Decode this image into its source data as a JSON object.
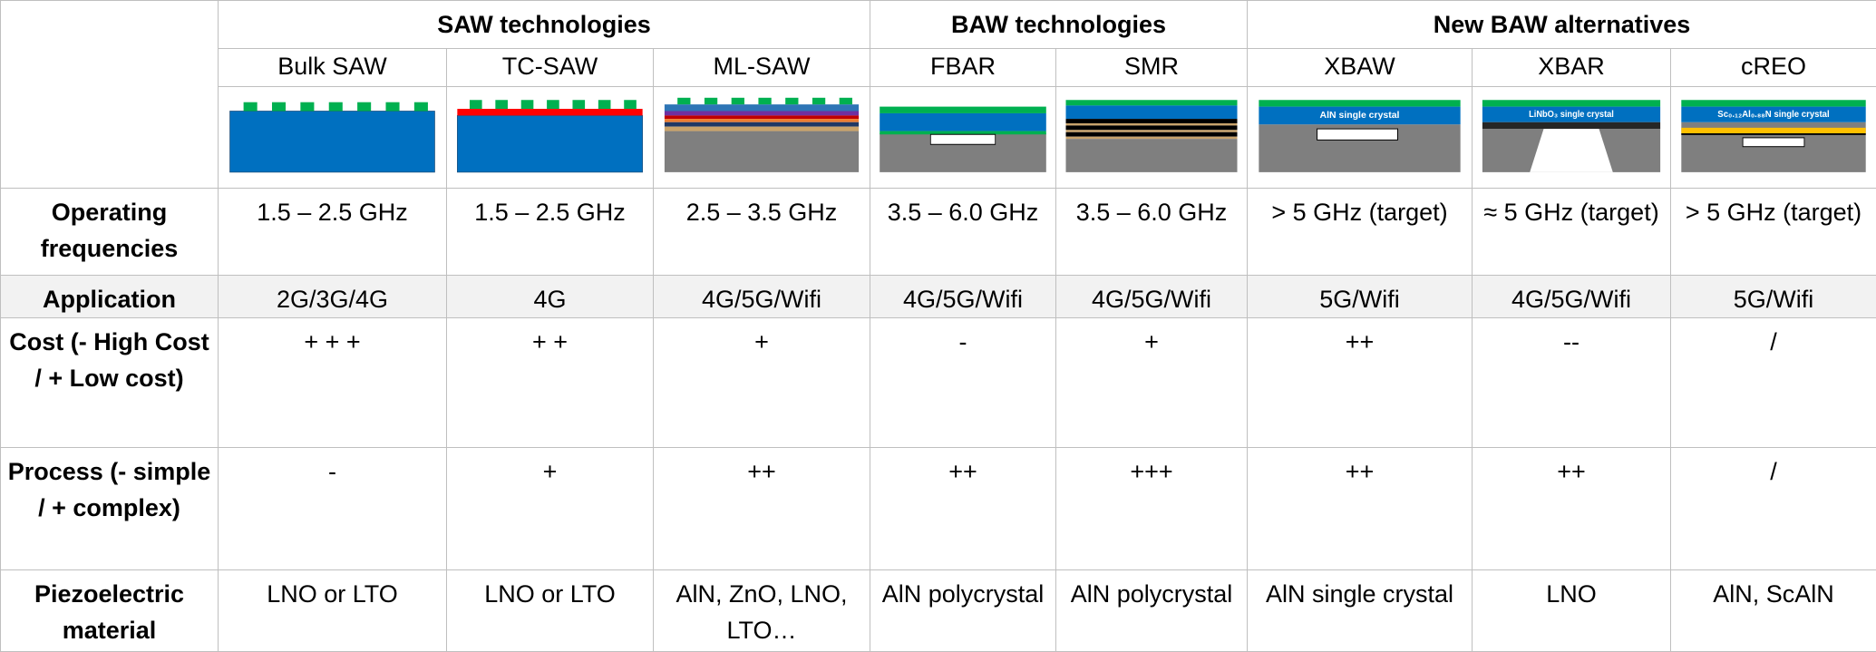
{
  "groups": [
    {
      "title": "SAW technologies",
      "columns": [
        {
          "name": "Bulk SAW"
        },
        {
          "name": "TC-SAW"
        },
        {
          "name": "ML-SAW"
        }
      ]
    },
    {
      "title": "BAW technologies",
      "columns": [
        {
          "name": "FBAR"
        },
        {
          "name": "SMR"
        }
      ]
    },
    {
      "title": "New BAW alternatives",
      "columns": [
        {
          "name": "XBAW",
          "diagram_label": "AlN single crystal"
        },
        {
          "name": "XBAR",
          "diagram_label": "LiNbO₃ single crystal"
        },
        {
          "name": "cREO",
          "diagram_label": "Sc₀.₁₂Al₀.₈₈N single crystal"
        }
      ]
    }
  ],
  "rows": [
    {
      "label": "Operating frequencies",
      "cells": [
        "1.5 – 2.5 GHz",
        "1.5 – 2.5 GHz",
        "2.5 – 3.5 GHz",
        "3.5 – 6.0 GHz",
        "3.5 – 6.0 GHz",
        "> 5 GHz (target)",
        "≈ 5 GHz (target)",
        "> 5 GHz (target)"
      ]
    },
    {
      "label": "Application",
      "cells": [
        "2G/3G/4G",
        "4G",
        "4G/5G/Wifi",
        "4G/5G/Wifi",
        "4G/5G/Wifi",
        "5G/Wifi",
        "4G/5G/Wifi",
        "5G/Wifi"
      ]
    },
    {
      "label": "Cost (- High Cost / + Low cost)",
      "cells": [
        "+ + +",
        "+ +",
        "+",
        "-",
        "+",
        "++",
        "--",
        "/"
      ]
    },
    {
      "label": "Process (- simple / + complex)",
      "cells": [
        "-",
        "+",
        "++",
        "++",
        "+++",
        "++",
        "++",
        "/"
      ]
    },
    {
      "label": "Piezoelectric material",
      "cells": [
        "LNO or LTO",
        "LNO or LTO",
        "AlN, ZnO, LNO,  LTO…",
        "AlN polycrystal",
        "AlN polycrystal",
        "AlN single crystal",
        "LNO",
        "AlN, ScAlN"
      ]
    }
  ]
}
